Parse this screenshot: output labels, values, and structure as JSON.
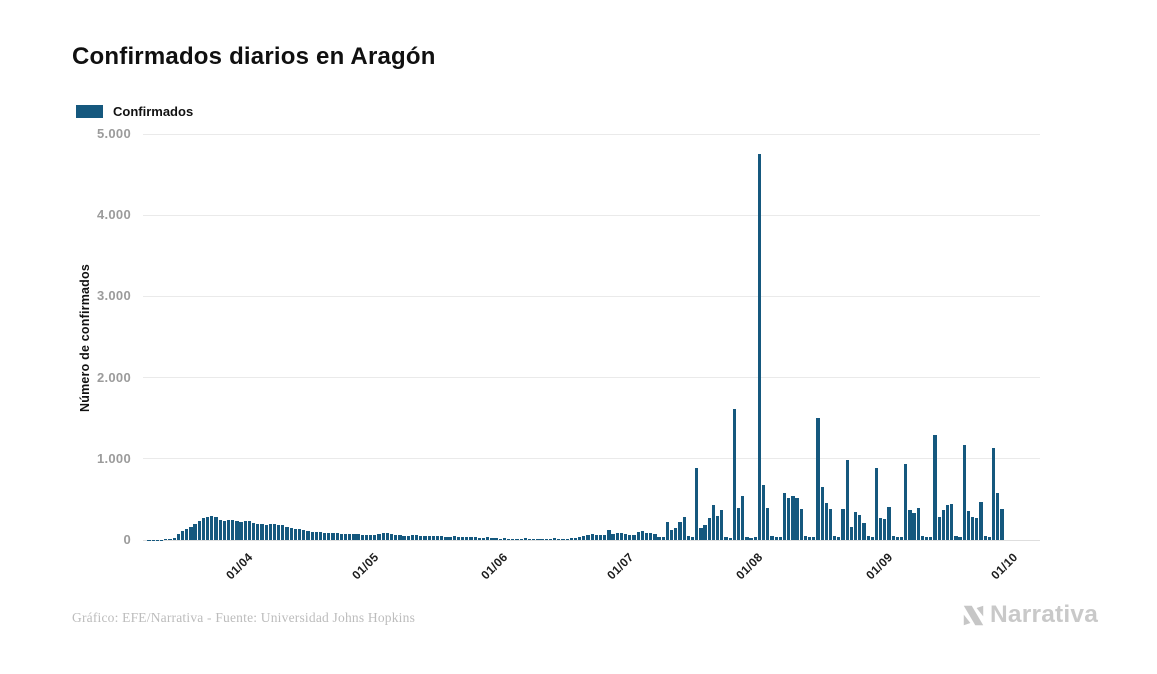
{
  "header": {
    "title": "Confirmados diarios en Aragón"
  },
  "legend": {
    "label": "Confirmados",
    "color": "#15587E"
  },
  "footer": {
    "credit": "Gráfico: EFE/Narrativa - Fuente: Universidad Johns Hopkins",
    "logo_text": "Narrativa"
  },
  "chart_data": {
    "type": "bar",
    "title": "Confirmados diarios en Aragón",
    "xlabel": "",
    "ylabel": "Número de confirmados",
    "ylim": [
      0,
      5000
    ],
    "yticks": [
      0,
      1000,
      2000,
      3000,
      4000,
      5000
    ],
    "ytick_labels": [
      "0",
      "1.000",
      "2.000",
      "3.000",
      "4.000",
      "5.000"
    ],
    "grid": true,
    "legend_position": "top-left",
    "series_name": "Confirmados",
    "bar_color": "#15587E",
    "grid_color": "#eaeaea",
    "x_unit": "day",
    "month_ticks": [
      {
        "index": 21,
        "label": "01/04"
      },
      {
        "index": 51,
        "label": "01/05"
      },
      {
        "index": 82,
        "label": "01/06"
      },
      {
        "index": 112,
        "label": "01/07"
      },
      {
        "index": 143,
        "label": "01/08"
      },
      {
        "index": 174,
        "label": "01/09"
      },
      {
        "index": 204,
        "label": "01/10"
      }
    ],
    "values": [
      2,
      2,
      3,
      5,
      8,
      12,
      30,
      70,
      110,
      140,
      160,
      195,
      230,
      270,
      285,
      300,
      280,
      248,
      230,
      245,
      252,
      238,
      225,
      230,
      236,
      215,
      202,
      196,
      188,
      196,
      194,
      190,
      180,
      166,
      152,
      140,
      130,
      120,
      112,
      102,
      100,
      95,
      90,
      86,
      92,
      86,
      80,
      76,
      72,
      76,
      70,
      66,
      60,
      56,
      62,
      72,
      90,
      84,
      74,
      62,
      56,
      52,
      50,
      56,
      60,
      54,
      50,
      46,
      44,
      50,
      46,
      40,
      40,
      44,
      40,
      36,
      34,
      40,
      34,
      30,
      28,
      34,
      24,
      20,
      16,
      20,
      14,
      10,
      10,
      16,
      20,
      14,
      10,
      12,
      16,
      10,
      14,
      20,
      14,
      10,
      16,
      20,
      26,
      36,
      50,
      62,
      72,
      66,
      60,
      56,
      120,
      78,
      92,
      86,
      72,
      62,
      56,
      96,
      110,
      92,
      84,
      76,
      42,
      36,
      225,
      120,
      152,
      222,
      280,
      46,
      40,
      890,
      150,
      186,
      270,
      430,
      292,
      370,
      32,
      26,
      1610,
      392,
      536,
      42,
      30,
      36,
      4755,
      676,
      392,
      46,
      36,
      42,
      576,
      516,
      546,
      520,
      382,
      46,
      40,
      36,
      1500,
      650,
      456,
      382,
      46,
      40,
      382,
      990,
      166,
      346,
      306,
      212,
      46,
      40,
      886,
      272,
      256,
      406,
      46,
      40,
      36,
      940,
      372,
      330,
      392,
      46,
      40,
      36,
      1290,
      286,
      372,
      432,
      442,
      46,
      40,
      1165,
      352,
      286,
      272,
      470,
      46,
      40,
      1130,
      576,
      382
    ]
  }
}
